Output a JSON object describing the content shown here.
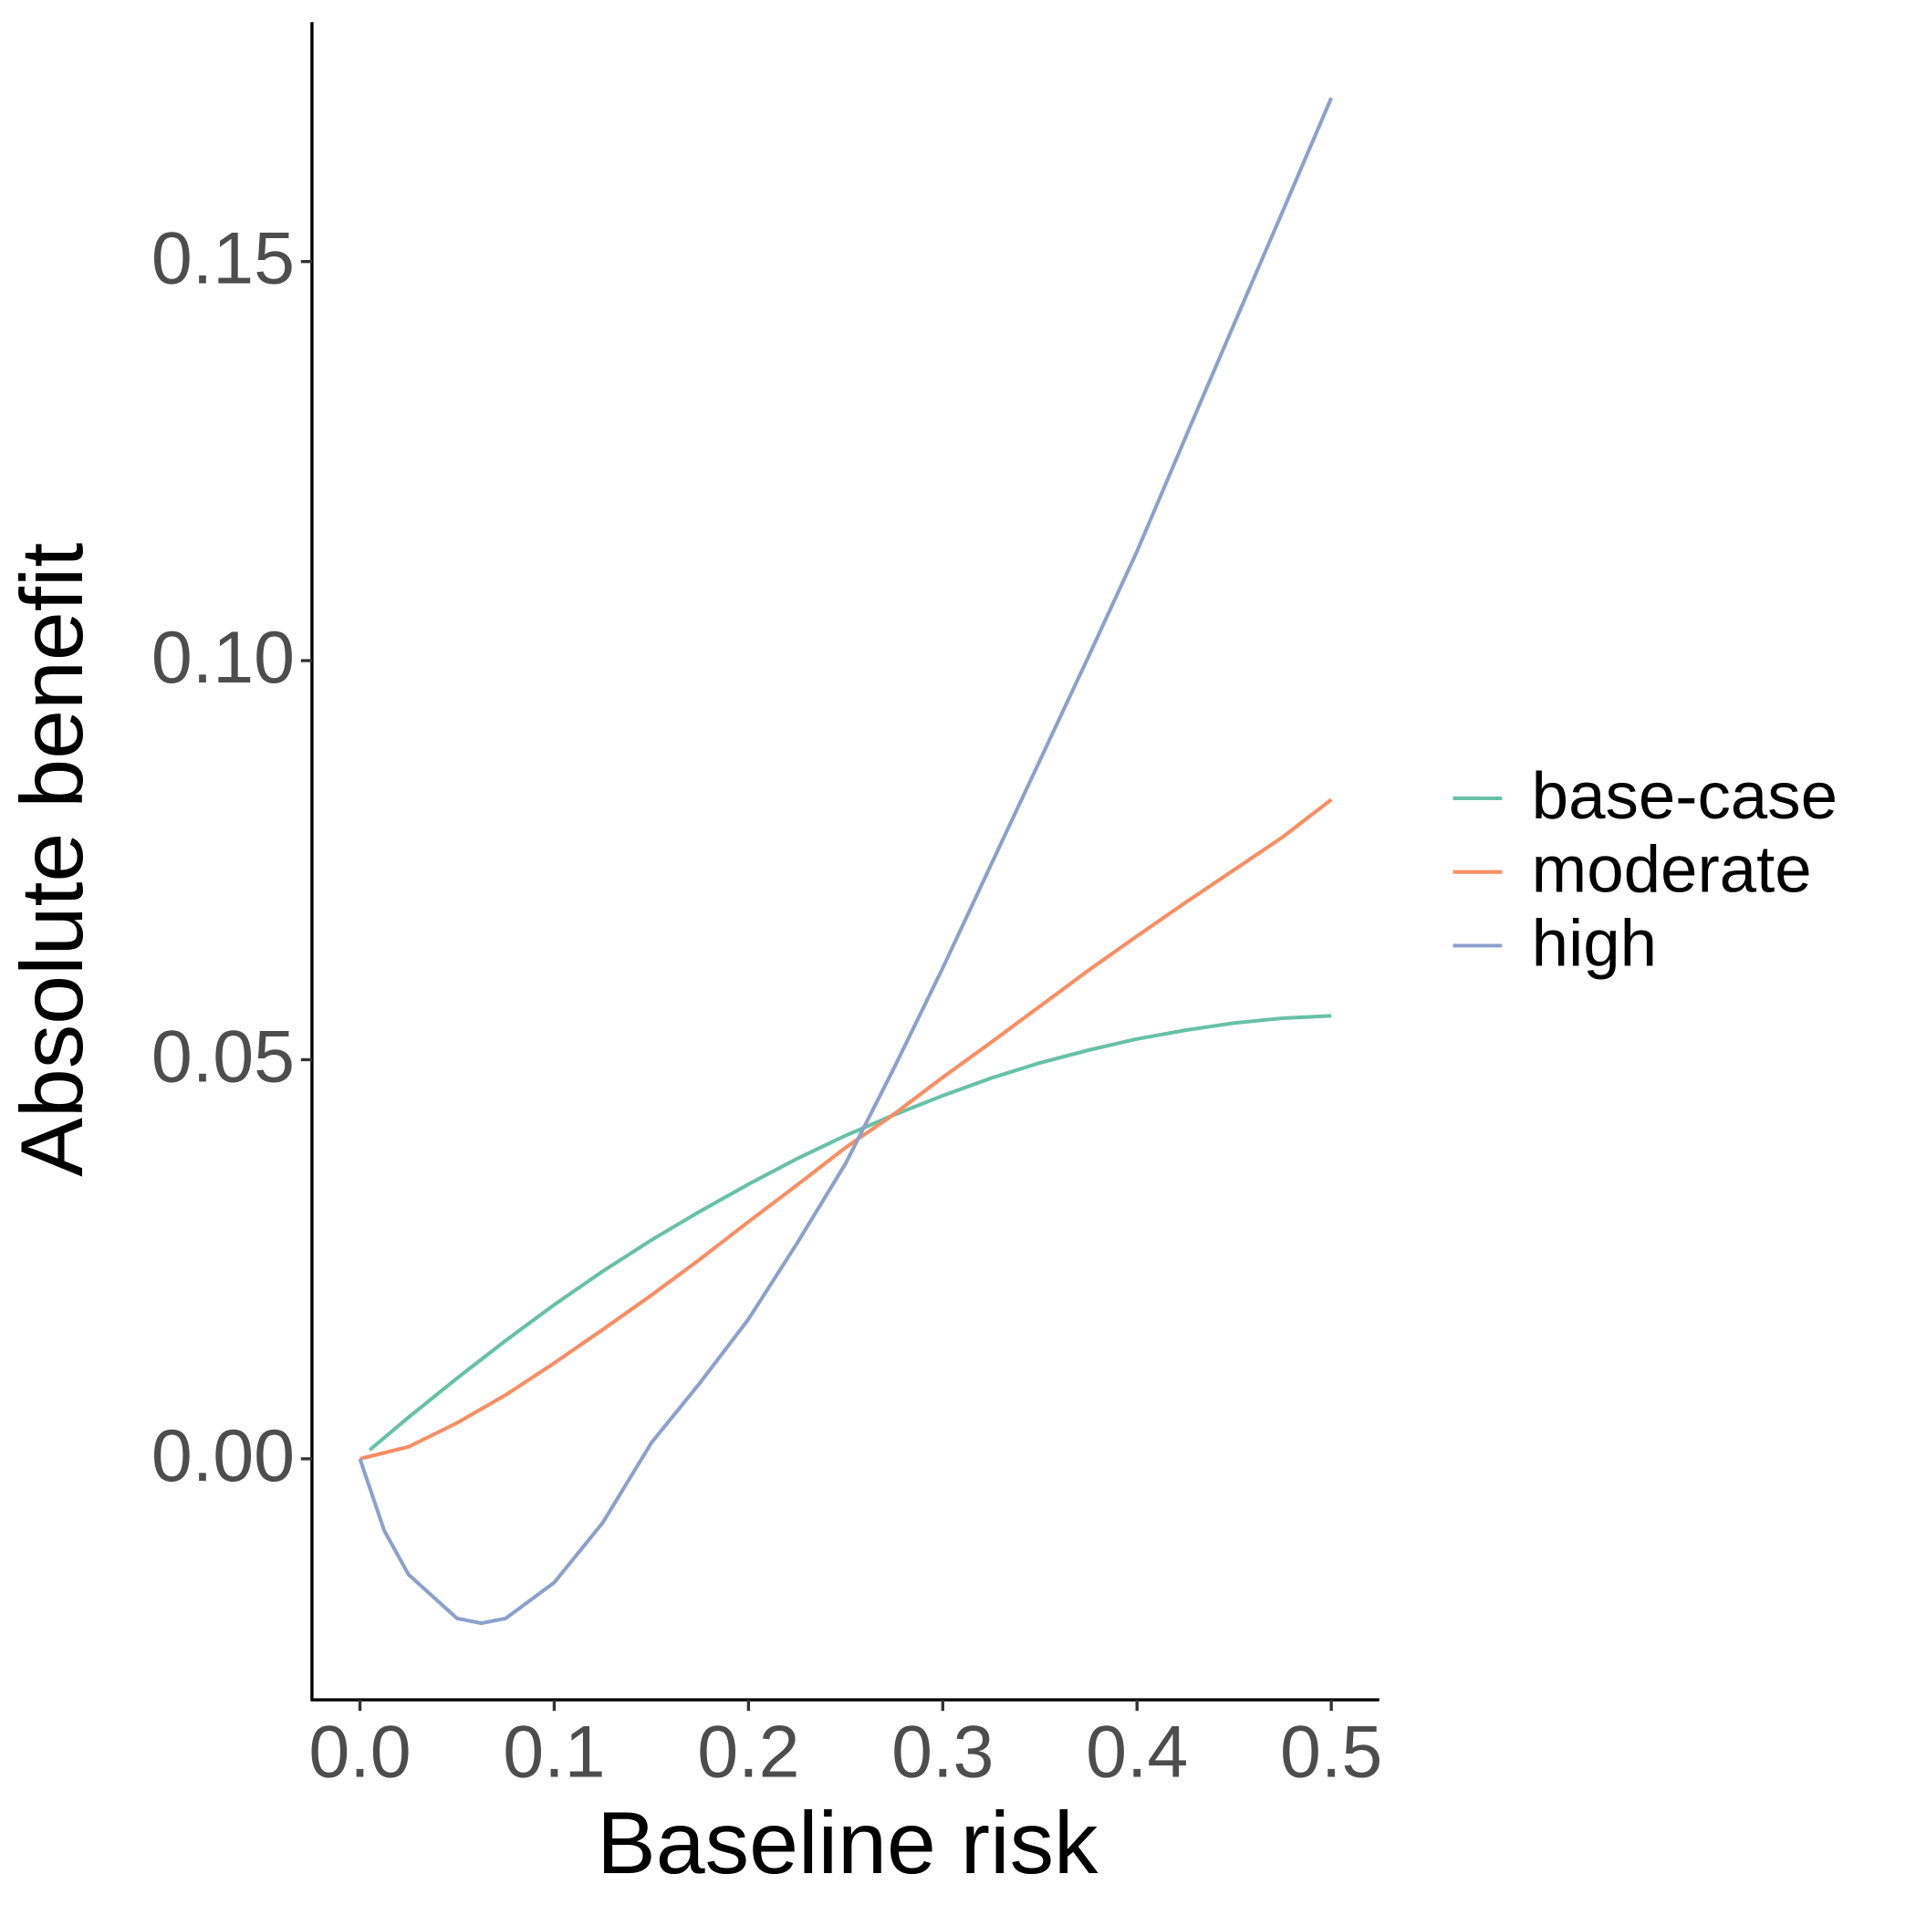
{
  "chart_data": {
    "type": "line",
    "x_label": "Baseline risk",
    "y_label": "Absolute benefit",
    "xlim": [
      -0.0247,
      0.5247
    ],
    "ylim": [
      -0.0302,
      0.18
    ],
    "xticks": [
      {
        "value": 0,
        "label": "0.0"
      },
      {
        "value": 0.1,
        "label": "0.1"
      },
      {
        "value": 0.2,
        "label": "0.2"
      },
      {
        "value": 0.3,
        "label": "0.3"
      },
      {
        "value": 0.4,
        "label": "0.4"
      },
      {
        "value": 0.5,
        "label": "0.5"
      }
    ],
    "yticks": [
      {
        "value": 0,
        "label": "0.00"
      },
      {
        "value": 0.05,
        "label": "0.05"
      },
      {
        "value": 0.1,
        "label": "0.10"
      },
      {
        "value": 0.15,
        "label": "0.15"
      }
    ],
    "legend": "right",
    "series": [
      {
        "name": "base-case",
        "color": "#66c2a5",
        "x": [
          0.005,
          0.025,
          0.05,
          0.075,
          0.1,
          0.125,
          0.15,
          0.175,
          0.2,
          0.225,
          0.25,
          0.275,
          0.3,
          0.325,
          0.35,
          0.375,
          0.4,
          0.425,
          0.45,
          0.475,
          0.5
        ],
        "values": [
          0.0011,
          0.0052,
          0.0101,
          0.0148,
          0.0193,
          0.0235,
          0.0274,
          0.031,
          0.0344,
          0.0376,
          0.0405,
          0.0431,
          0.0455,
          0.0477,
          0.0496,
          0.0512,
          0.0526,
          0.0537,
          0.0546,
          0.0552,
          0.0555
        ]
      },
      {
        "name": "moderate",
        "color": "#fc8d62",
        "x": [
          0,
          0.025,
          0.05,
          0.075,
          0.1,
          0.125,
          0.15,
          0.175,
          0.2,
          0.225,
          0.25,
          0.275,
          0.3,
          0.325,
          0.35,
          0.375,
          0.4,
          0.425,
          0.45,
          0.475,
          0.5
        ],
        "values": [
          0,
          0.0015,
          0.0045,
          0.008,
          0.012,
          0.0162,
          0.0205,
          0.025,
          0.0297,
          0.0343,
          0.039,
          0.0432,
          0.0478,
          0.0522,
          0.0567,
          0.0612,
          0.0655,
          0.0697,
          0.0738,
          0.0779,
          0.0826
        ]
      },
      {
        "name": "high",
        "color": "#8da0cb",
        "x": [
          0,
          0.0125,
          0.025,
          0.05,
          0.0625,
          0.075,
          0.1,
          0.125,
          0.15,
          0.175,
          0.2,
          0.225,
          0.25,
          0.275,
          0.3,
          0.325,
          0.35,
          0.375,
          0.4,
          0.425,
          0.45,
          0.475,
          0.5
        ],
        "values": [
          0,
          -0.009,
          -0.0145,
          -0.02,
          -0.0206,
          -0.02,
          -0.0155,
          -0.008,
          0.002,
          0.0095,
          0.0175,
          0.027,
          0.037,
          0.049,
          0.0615,
          0.0745,
          0.0875,
          0.1005,
          0.1137,
          0.128,
          0.1422,
          0.1563,
          0.1705
        ]
      }
    ]
  }
}
